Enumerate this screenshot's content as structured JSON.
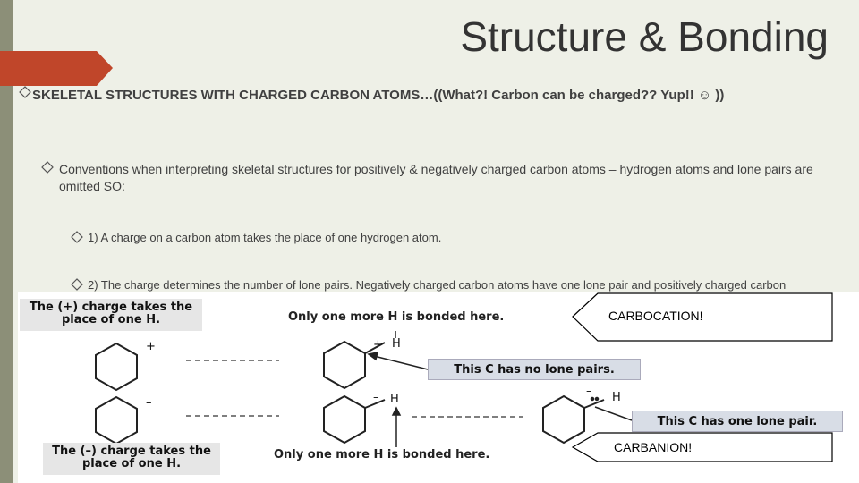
{
  "header": {
    "title": "Structure & Bonding"
  },
  "bullets": [
    "SKELETAL STRUCTURES WITH CHARGED CARBON ATOMS…((What?! Carbon can be charged?? Yup!! ☺ ))",
    "Conventions when interpreting skeletal structures for positively & negatively charged carbon atoms – hydrogen atoms and lone pairs are omitted SO:",
    "1) A charge on a carbon atom takes the place of one hydrogen atom.",
    "2) The charge determines the number of lone pairs. Negatively charged carbon atoms have one lone pair and positively charged carbon"
  ],
  "figure": {
    "labels": [
      "The (+) charge takes the place of one H.",
      "Only one more H is bonded here.",
      "This C has no lone pairs.",
      "The (–) charge takes the place of one H.",
      "Only one more H is bonded here.",
      "This C has one lone pair."
    ],
    "atoms": [
      "+",
      "+",
      "H",
      "–",
      "–",
      "H",
      "–",
      "H"
    ]
  },
  "callouts": [
    "CARBOCATION!",
    "CARBANION!"
  ]
}
